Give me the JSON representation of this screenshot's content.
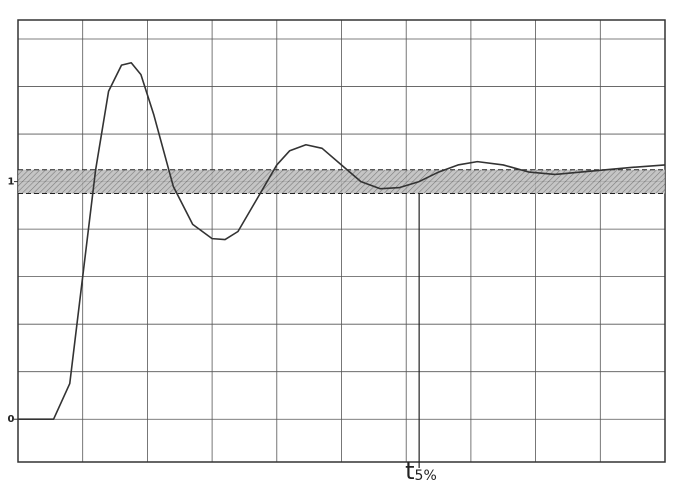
{
  "chart_data": {
    "type": "line",
    "xlim": [
      0,
      10
    ],
    "ylim": [
      -0.18,
      1.68
    ],
    "yticks": [
      0,
      1
    ],
    "xgrid": [
      0,
      1,
      2,
      3,
      4,
      5,
      6,
      7,
      8,
      9,
      10
    ],
    "ygrid": [
      0,
      0.2,
      0.4,
      0.6,
      0.8,
      1,
      1.2,
      1.4,
      1.6
    ],
    "grid": true,
    "band": [
      0.95,
      1.05
    ],
    "settling_time": 6.2,
    "settling_label": "t",
    "settling_label_sub": "5%",
    "series": [
      {
        "color": "#333333",
        "x": [
          0,
          0.55,
          0.8,
          1.0,
          1.2,
          1.4,
          1.6,
          1.75,
          1.9,
          2.1,
          2.4,
          2.7,
          3.0,
          3.2,
          3.4,
          3.7,
          4.0,
          4.2,
          4.45,
          4.7,
          5.0,
          5.3,
          5.6,
          5.9,
          6.2,
          6.5,
          6.8,
          7.1,
          7.5,
          7.9,
          8.3,
          8.7,
          9.1,
          9.5,
          10
        ],
        "values": [
          0,
          0,
          0.15,
          0.6,
          1.05,
          1.38,
          1.49,
          1.5,
          1.45,
          1.28,
          0.98,
          0.82,
          0.76,
          0.756,
          0.79,
          0.93,
          1.07,
          1.13,
          1.155,
          1.14,
          1.07,
          1.0,
          0.97,
          0.975,
          1.0,
          1.04,
          1.07,
          1.084,
          1.07,
          1.04,
          1.03,
          1.04,
          1.05,
          1.06,
          1.07
        ]
      }
    ]
  }
}
